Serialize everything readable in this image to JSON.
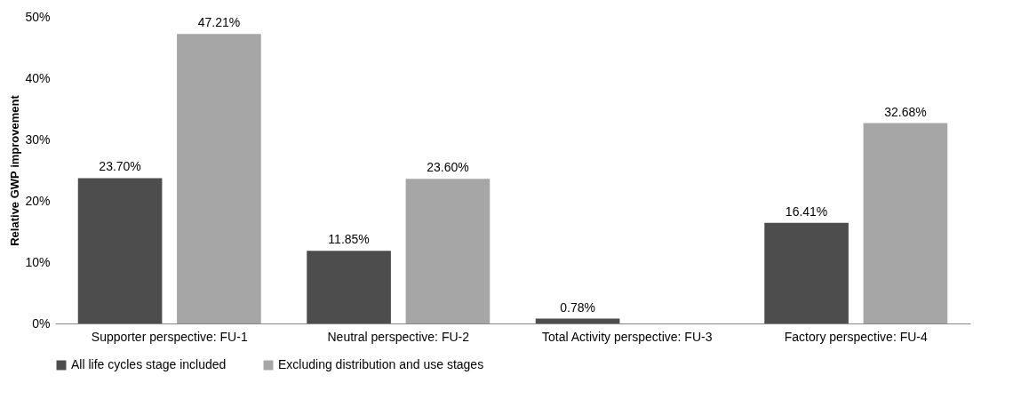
{
  "chart_data": {
    "type": "bar",
    "ylabel": "Relative GWP improvement",
    "categories": [
      "Supporter perspective: FU-1",
      "Neutral perspective: FU-2",
      "Total Activity perspective: FU-3",
      "Factory perspective: FU-4"
    ],
    "series": [
      {
        "name": "All life cycles stage included",
        "color": "#4d4d4d",
        "values": [
          23.7,
          11.85,
          0.78,
          16.41
        ],
        "value_labels": [
          "23.70%",
          "11.85%",
          "0.78%",
          "16.41%"
        ]
      },
      {
        "name": "Excluding distribution and use stages",
        "color": "#a6a6a6",
        "values": [
          47.21,
          23.6,
          null,
          32.68
        ],
        "value_labels": [
          "47.21%",
          "23.60%",
          null,
          "32.68%"
        ]
      }
    ],
    "ylim": [
      0,
      50
    ],
    "yticks": [
      {
        "value": 0,
        "label": "0%"
      },
      {
        "value": 10,
        "label": "10%"
      },
      {
        "value": 20,
        "label": "20%"
      },
      {
        "value": 30,
        "label": "30%"
      },
      {
        "value": 40,
        "label": "40%"
      },
      {
        "value": 50,
        "label": "50%"
      }
    ],
    "grid": false,
    "legend": "bottom"
  }
}
